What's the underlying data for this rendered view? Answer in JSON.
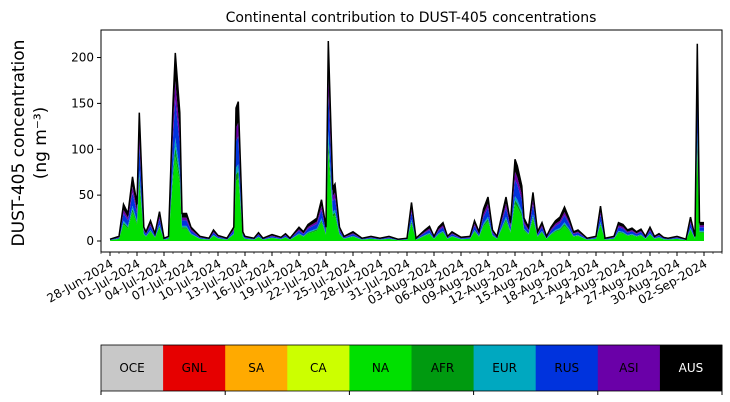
{
  "chart_data": {
    "type": "area",
    "title": "Continental contribution to DUST-405 concentrations",
    "ylabel_line1": "DUST-405 concentration",
    "ylabel_line2": "(ng m⁻³)",
    "xlabel": "",
    "ylim": [
      -12,
      230
    ],
    "yticks": [
      0,
      50,
      100,
      150,
      200
    ],
    "x_range": [
      "2024-06-27",
      "2024-09-04"
    ],
    "date_ticks": [
      "28-Jun-2024",
      "01-Jul-2024",
      "04-Jul-2024",
      "07-Jul-2024",
      "10-Jul-2024",
      "13-Jul-2024",
      "16-Jul-2024",
      "19-Jul-2024",
      "22-Jul-2024",
      "25-Jul-2024",
      "28-Jul-2024",
      "31-Jul-2024",
      "03-Aug-2024",
      "06-Aug-2024",
      "09-Aug-2024",
      "12-Aug-2024",
      "15-Aug-2024",
      "18-Aug-2024",
      "21-Aug-2024",
      "24-Aug-2024",
      "27-Aug-2024",
      "30-Aug-2024",
      "02-Sep-2024"
    ],
    "grid": false,
    "legend_position": "bottom",
    "legend": [
      {
        "name": "OCE",
        "color": "#c8c8c8",
        "text_color": "#000000"
      },
      {
        "name": "GNL",
        "color": "#e60000",
        "text_color": "#000000"
      },
      {
        "name": "SA",
        "color": "#ffaa00",
        "text_color": "#000000"
      },
      {
        "name": "CA",
        "color": "#ccff00",
        "text_color": "#000000"
      },
      {
        "name": "NA",
        "color": "#00e000",
        "text_color": "#000000"
      },
      {
        "name": "AFR",
        "color": "#009a10",
        "text_color": "#000000"
      },
      {
        "name": "EUR",
        "color": "#00a8c0",
        "text_color": "#000000"
      },
      {
        "name": "RUS",
        "color": "#0033dd",
        "text_color": "#000000"
      },
      {
        "name": "ASI",
        "color": "#6a00a8",
        "text_color": "#000000"
      },
      {
        "name": "AUS",
        "color": "#000000",
        "text_color": "#ffffff"
      }
    ],
    "total_series": {
      "name": "total",
      "points": [
        [
          "2024-06-28",
          2
        ],
        [
          "2024-06-29",
          5
        ],
        [
          "2024-06-29T12",
          40
        ],
        [
          "2024-06-30",
          30
        ],
        [
          "2024-06-30T12",
          70
        ],
        [
          "2024-07-01",
          40
        ],
        [
          "2024-07-01T06",
          140
        ],
        [
          "2024-07-01T18",
          15
        ],
        [
          "2024-07-02",
          10
        ],
        [
          "2024-07-02T12",
          22
        ],
        [
          "2024-07-03",
          8
        ],
        [
          "2024-07-03T12",
          32
        ],
        [
          "2024-07-04",
          3
        ],
        [
          "2024-07-04T12",
          5
        ],
        [
          "2024-07-05",
          150
        ],
        [
          "2024-07-05T06",
          205
        ],
        [
          "2024-07-05T18",
          140
        ],
        [
          "2024-07-06",
          30
        ],
        [
          "2024-07-06T12",
          30
        ],
        [
          "2024-07-07",
          15
        ],
        [
          "2024-07-08",
          5
        ],
        [
          "2024-07-09",
          3
        ],
        [
          "2024-07-09T12",
          12
        ],
        [
          "2024-07-10",
          6
        ],
        [
          "2024-07-11",
          3
        ],
        [
          "2024-07-11T18",
          15
        ],
        [
          "2024-07-12",
          145
        ],
        [
          "2024-07-12T06",
          152
        ],
        [
          "2024-07-12T18",
          10
        ],
        [
          "2024-07-13",
          5
        ],
        [
          "2024-07-14",
          3
        ],
        [
          "2024-07-14T12",
          9
        ],
        [
          "2024-07-15",
          3
        ],
        [
          "2024-07-16",
          7
        ],
        [
          "2024-07-17",
          4
        ],
        [
          "2024-07-17T12",
          8
        ],
        [
          "2024-07-18",
          3
        ],
        [
          "2024-07-19",
          15
        ],
        [
          "2024-07-19T12",
          10
        ],
        [
          "2024-07-20",
          18
        ],
        [
          "2024-07-21",
          25
        ],
        [
          "2024-07-21T12",
          45
        ],
        [
          "2024-07-22",
          15
        ],
        [
          "2024-07-22T06",
          218
        ],
        [
          "2024-07-22T18",
          58
        ],
        [
          "2024-07-23",
          62
        ],
        [
          "2024-07-23T12",
          15
        ],
        [
          "2024-07-24",
          5
        ],
        [
          "2024-07-25",
          10
        ],
        [
          "2024-07-26",
          3
        ],
        [
          "2024-07-27",
          5
        ],
        [
          "2024-07-28",
          3
        ],
        [
          "2024-07-29",
          5
        ],
        [
          "2024-07-30",
          2
        ],
        [
          "2024-07-31",
          3
        ],
        [
          "2024-07-31T12",
          42
        ],
        [
          "2024-08-01",
          3
        ],
        [
          "2024-08-02",
          12
        ],
        [
          "2024-08-02T12",
          16
        ],
        [
          "2024-08-03",
          5
        ],
        [
          "2024-08-03T12",
          15
        ],
        [
          "2024-08-04",
          20
        ],
        [
          "2024-08-04T12",
          5
        ],
        [
          "2024-08-05",
          10
        ],
        [
          "2024-08-06",
          4
        ],
        [
          "2024-08-07",
          5
        ],
        [
          "2024-08-07T12",
          22
        ],
        [
          "2024-08-08",
          10
        ],
        [
          "2024-08-08T12",
          35
        ],
        [
          "2024-08-09",
          48
        ],
        [
          "2024-08-09T12",
          12
        ],
        [
          "2024-08-10",
          5
        ],
        [
          "2024-08-11",
          48
        ],
        [
          "2024-08-11T12",
          20
        ],
        [
          "2024-08-12",
          89
        ],
        [
          "2024-08-12T06",
          82
        ],
        [
          "2024-08-12T18",
          60
        ],
        [
          "2024-08-13",
          25
        ],
        [
          "2024-08-13T12",
          15
        ],
        [
          "2024-08-14",
          53
        ],
        [
          "2024-08-14T12",
          10
        ],
        [
          "2024-08-15",
          20
        ],
        [
          "2024-08-15T12",
          5
        ],
        [
          "2024-08-16",
          15
        ],
        [
          "2024-08-16T12",
          22
        ],
        [
          "2024-08-17",
          26
        ],
        [
          "2024-08-17T12",
          37
        ],
        [
          "2024-08-18",
          25
        ],
        [
          "2024-08-18T12",
          10
        ],
        [
          "2024-08-19",
          12
        ],
        [
          "2024-08-20",
          3
        ],
        [
          "2024-08-21",
          5
        ],
        [
          "2024-08-21T12",
          38
        ],
        [
          "2024-08-22",
          3
        ],
        [
          "2024-08-23",
          5
        ],
        [
          "2024-08-23T12",
          20
        ],
        [
          "2024-08-24",
          18
        ],
        [
          "2024-08-24T12",
          12
        ],
        [
          "2024-08-25",
          14
        ],
        [
          "2024-08-25T12",
          10
        ],
        [
          "2024-08-26",
          13
        ],
        [
          "2024-08-26T12",
          5
        ],
        [
          "2024-08-27",
          15
        ],
        [
          "2024-08-27T12",
          5
        ],
        [
          "2024-08-28",
          8
        ],
        [
          "2024-08-28T12",
          4
        ],
        [
          "2024-08-29",
          3
        ],
        [
          "2024-08-30",
          5
        ],
        [
          "2024-08-31",
          2
        ],
        [
          "2024-08-31T12",
          26
        ],
        [
          "2024-09-01",
          5
        ],
        [
          "2024-09-01T06",
          215
        ],
        [
          "2024-09-01T12",
          20
        ],
        [
          "2024-09-02",
          20
        ]
      ]
    },
    "stack_fractions": [
      0.0,
      0.0,
      0.0,
      0.0,
      0.45,
      0.05,
      0.05,
      0.2,
      0.1,
      0.15
    ]
  }
}
